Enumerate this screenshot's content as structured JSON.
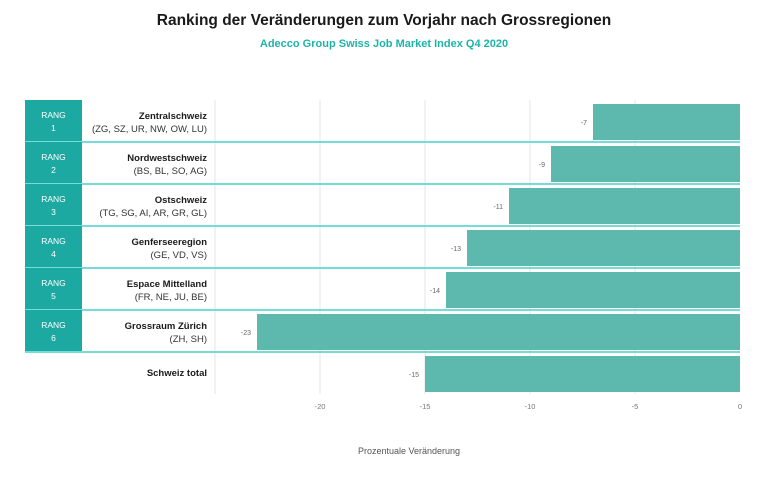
{
  "chart_data": {
    "type": "bar",
    "orientation": "horizontal",
    "title": "Ranking der Veränderungen zum Vorjahr nach Grossregionen",
    "subtitle": "Adecco Group Swiss Job Market Index  Q4 2020",
    "xlabel": "Prozentuale Veränderung",
    "xlim": [
      -25,
      0
    ],
    "xticks": [
      -20,
      -15,
      -10,
      -5,
      0
    ],
    "grid": "vertical",
    "rank_label": "RANG",
    "categories": [
      {
        "rank": "1",
        "name": "Zentralschweiz",
        "cantons": "(ZG, SZ, UR, NW, OW, LU)"
      },
      {
        "rank": "2",
        "name": "Nordwestschweiz",
        "cantons": "(BS, BL, SO, AG)"
      },
      {
        "rank": "3",
        "name": "Ostschweiz",
        "cantons": "(TG, SG, AI, AR, GR, GL)"
      },
      {
        "rank": "4",
        "name": "Genferseeregion",
        "cantons": "(GE, VD, VS)"
      },
      {
        "rank": "5",
        "name": "Espace Mittelland",
        "cantons": "(FR, NE, JU, BE)"
      },
      {
        "rank": "6",
        "name": "Grossraum Zürich",
        "cantons": "(ZH, SH)"
      },
      {
        "rank": "",
        "name": "Schweiz total",
        "cantons": ""
      }
    ],
    "values": [
      -7,
      -9,
      -11,
      -13,
      -14,
      -23,
      -15
    ],
    "colors": {
      "bar": "#5db8ae",
      "rank_cell": "#1ba9a2",
      "separator": "#46d2cc",
      "subtitle": "#1db3aa",
      "grid": "#e6e6e6"
    }
  }
}
